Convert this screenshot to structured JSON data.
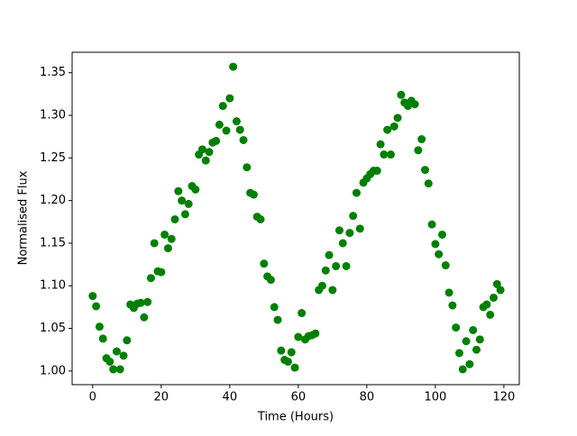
{
  "chart_data": {
    "type": "scatter",
    "xlabel": "Time (Hours)",
    "ylabel": "Normalised Flux",
    "x": [
      0,
      1,
      2,
      3,
      4,
      5,
      6,
      7,
      8,
      9,
      10,
      11,
      12,
      13,
      14,
      15,
      16,
      17,
      18,
      19,
      20,
      21,
      22,
      23,
      24,
      25,
      26,
      27,
      28,
      29,
      30,
      31,
      32,
      33,
      34,
      35,
      36,
      37,
      38,
      39,
      40,
      41,
      42,
      43,
      44,
      45,
      46,
      47,
      48,
      49,
      50,
      51,
      52,
      53,
      54,
      55,
      56,
      57,
      58,
      59,
      60,
      61,
      62,
      63,
      64,
      65,
      66,
      67,
      68,
      69,
      70,
      71,
      72,
      73,
      74,
      75,
      76,
      77,
      78,
      79,
      80,
      81,
      82,
      83,
      84,
      85,
      86,
      87,
      88,
      89,
      90,
      91,
      92,
      93,
      94,
      95,
      96,
      97,
      98,
      99,
      100,
      101,
      102,
      103,
      104,
      105,
      106,
      107,
      108,
      109,
      110,
      111,
      112,
      113,
      114,
      115,
      116,
      117,
      118,
      119
    ],
    "series": [
      {
        "color": "#008000",
        "values": [
          1.088,
          1.076,
          1.052,
          1.038,
          1.015,
          1.011,
          1.002,
          1.023,
          1.002,
          1.018,
          1.036,
          1.078,
          1.074,
          1.079,
          1.08,
          1.063,
          1.081,
          1.109,
          1.15,
          1.117,
          1.116,
          1.16,
          1.144,
          1.155,
          1.178,
          1.211,
          1.2,
          1.184,
          1.196,
          1.217,
          1.213,
          1.254,
          1.26,
          1.247,
          1.257,
          1.268,
          1.27,
          1.289,
          1.311,
          1.282,
          1.32,
          1.357,
          1.293,
          1.283,
          1.271,
          1.239,
          1.209,
          1.207,
          1.181,
          1.178,
          1.126,
          1.111,
          1.107,
          1.075,
          1.06,
          1.024,
          1.013,
          1.011,
          1.022,
          1.004,
          1.04,
          1.068,
          1.037,
          1.041,
          1.042,
          1.044,
          1.095,
          1.1,
          1.118,
          1.136,
          1.095,
          1.123,
          1.165,
          1.15,
          1.123,
          1.162,
          1.182,
          1.209,
          1.167,
          1.221,
          1.226,
          1.231,
          1.235,
          1.235,
          1.266,
          1.254,
          1.283,
          1.254,
          1.287,
          1.297,
          1.324,
          1.315,
          1.311,
          1.317,
          1.313,
          1.259,
          1.272,
          1.236,
          1.22,
          1.172,
          1.149,
          1.137,
          1.16,
          1.124,
          1.092,
          1.077,
          1.051,
          1.021,
          1.002,
          1.035,
          1.008,
          1.048,
          1.025,
          1.037,
          1.075,
          1.078,
          1.066,
          1.086,
          1.102,
          1.095
        ]
      }
    ],
    "xlim": [
      -6,
      124.5
    ],
    "ylim": [
      0.984,
      1.374
    ],
    "xticks": [
      0,
      20,
      40,
      60,
      80,
      100,
      120
    ],
    "yticks": [
      {
        "value": 1,
        "label": "1.00"
      },
      1.05,
      {
        "value": 1.1,
        "label": "1.10"
      },
      1.15,
      {
        "value": 1.2,
        "label": "1.20"
      },
      1.25,
      {
        "value": 1.3,
        "label": "1.30"
      },
      1.35
    ]
  }
}
